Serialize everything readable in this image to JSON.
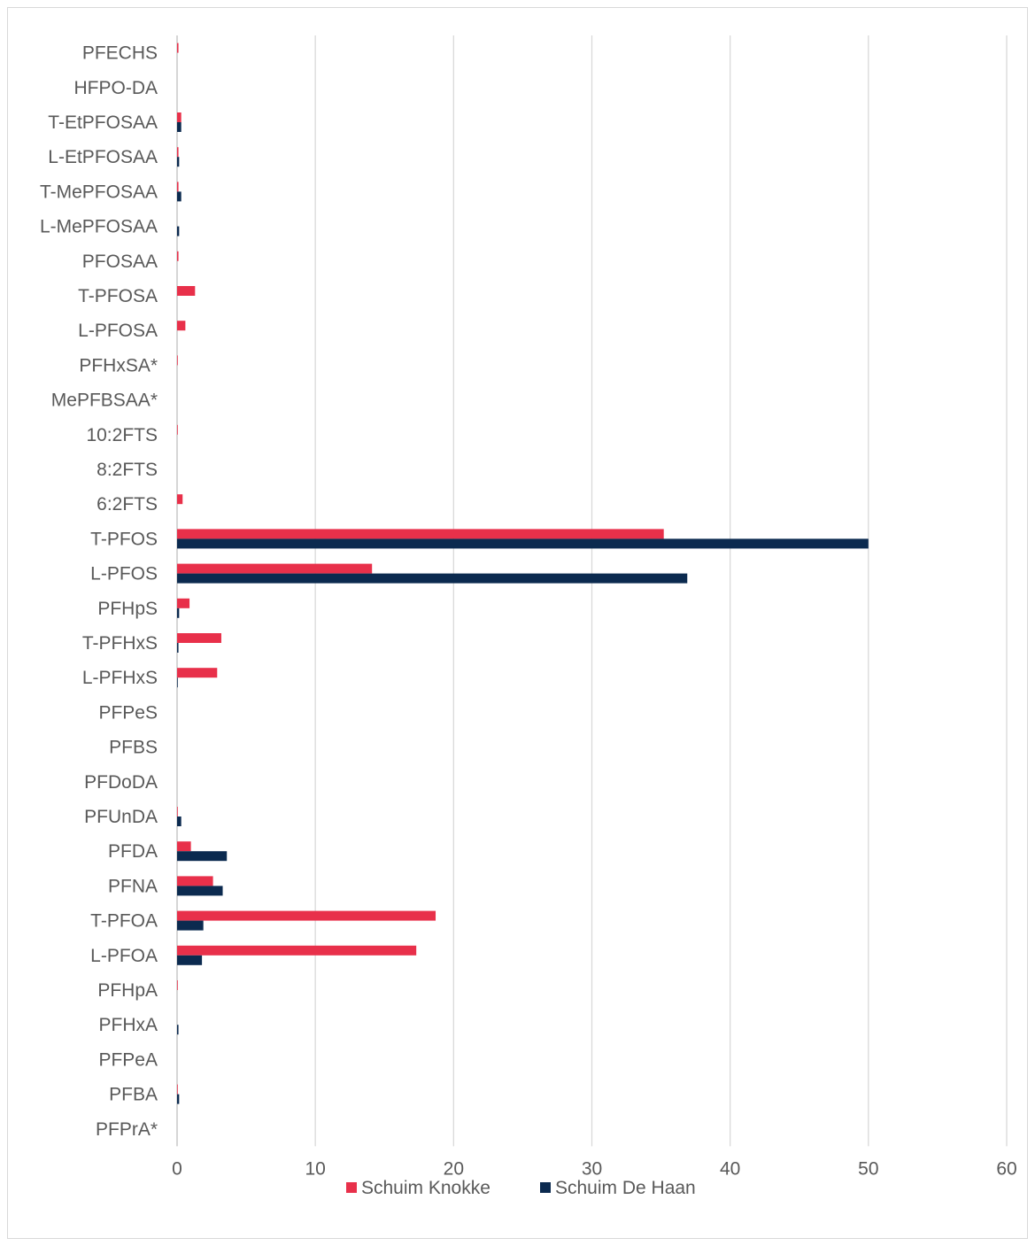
{
  "chart_data": {
    "type": "bar",
    "orientation": "horizontal",
    "categories": [
      "PFECHS",
      "HFPO-DA",
      "T-EtPFOSAA",
      "L-EtPFOSAA",
      "T-MePFOSAA",
      "L-MePFOSAA",
      "PFOSAA",
      "T-PFOSA",
      "L-PFOSA",
      "PFHxSA*",
      "MePFBSAA*",
      "10:2FTS",
      "8:2FTS",
      "6:2FTS",
      "T-PFOS",
      "L-PFOS",
      "PFHpS",
      "T-PFHxS",
      "L-PFHxS",
      "PFPeS",
      "PFBS",
      "PFDoDA",
      "PFUnDA",
      "PFDA",
      "PFNA",
      "T-PFOA",
      "L-PFOA",
      "PFHpA",
      "PFHxA",
      "PFPeA",
      "PFBA",
      "PFPrA*"
    ],
    "series": [
      {
        "name": "Schuim Knokke",
        "color": "#e8304a",
        "values": [
          0.1,
          0,
          0.3,
          0.1,
          0.1,
          0,
          0.1,
          1.3,
          0.6,
          0.05,
          0,
          0.05,
          0,
          0.4,
          35.2,
          14.1,
          0.9,
          3.2,
          2.9,
          0,
          0,
          0,
          0.05,
          1.0,
          2.6,
          18.7,
          17.3,
          0.05,
          0,
          0,
          0.05,
          0
        ]
      },
      {
        "name": "Schuim De Haan",
        "color": "#0b2a4f",
        "values": [
          0,
          0,
          0.3,
          0.15,
          0.3,
          0.15,
          0,
          0,
          0,
          0,
          0,
          0,
          0,
          0,
          50.0,
          36.9,
          0.15,
          0.1,
          0.05,
          0,
          0,
          0,
          0.3,
          3.6,
          3.3,
          1.9,
          1.8,
          0,
          0.1,
          0,
          0.15,
          0
        ]
      }
    ],
    "xticks": [
      "0",
      "10",
      "20",
      "30",
      "40",
      "50",
      "60"
    ],
    "xlim": [
      0,
      60
    ],
    "grid": "vertical",
    "legend_position": "bottom-center",
    "title": "",
    "xlabel": "",
    "ylabel": ""
  }
}
